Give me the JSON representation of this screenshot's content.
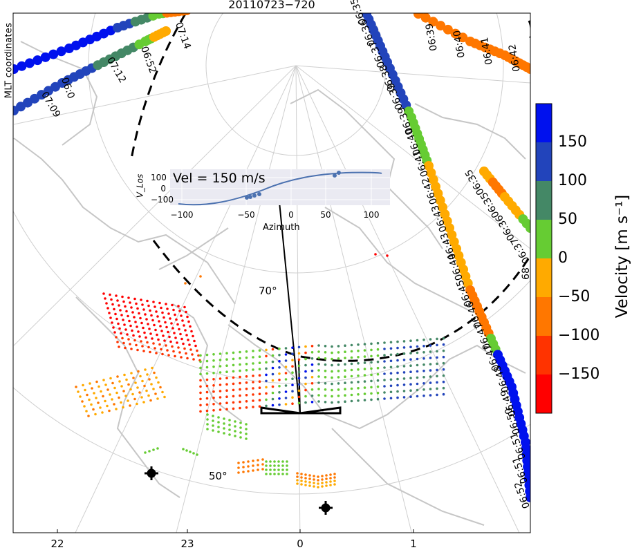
{
  "title": "20110723−720",
  "y_axis_label": "MLT coordinates",
  "x_ticks": [
    "22",
    "23",
    "0",
    "1"
  ],
  "latitude_labels": [
    "70°",
    "50°"
  ],
  "colorbar": {
    "label": "Velocity  [m s⁻¹]",
    "ticks": [
      "150",
      "100",
      "50",
      "0",
      "−50",
      "−100",
      "−150"
    ],
    "colors": [
      "#0011ee",
      "#2244bb",
      "#448866",
      "#66cc33",
      "#ffaa00",
      "#ff7700",
      "#ff3300",
      "#ff0000"
    ]
  },
  "inset": {
    "label": "Vel = 150 m/s",
    "ylabel": "V_Los",
    "xlabel": "Azimuth",
    "yticks": [
      "100",
      "0",
      "−100"
    ],
    "xticks": [
      "−100",
      "−50",
      "0",
      "50",
      "100"
    ]
  },
  "track_right": [
    "06:35",
    "06:36",
    "06:37",
    "06:38",
    "06:39",
    "06:39",
    "06:40",
    "06:41",
    "06:42",
    "06:43",
    "06:43",
    "06:44",
    "06:45",
    "06:46",
    "06:47",
    "06:47",
    "06:48",
    "06:49",
    "06:50",
    "06:51",
    "06:51",
    "06:52"
  ],
  "track_far_right": [
    "06:39",
    "06:40",
    "06:41",
    "06:42"
  ],
  "track_short": [
    "06:35",
    "06:35",
    "06:36",
    "06:37"
  ],
  "track_left_top": [
    "06:0",
    "06:52",
    "07:14"
  ],
  "track_left_bottom": [
    "07:09",
    "07:12"
  ],
  "marker_right_edge": "68"
}
